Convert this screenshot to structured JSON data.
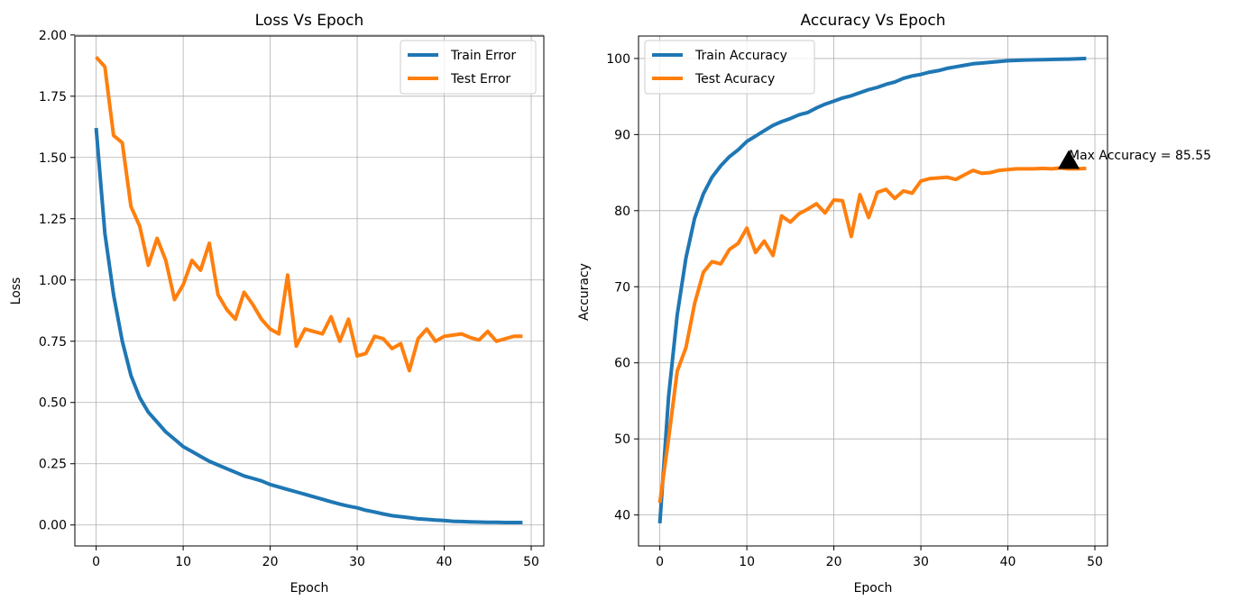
{
  "chart_data": [
    {
      "type": "line",
      "title": "Loss Vs Epoch",
      "xlabel": "Epoch",
      "ylabel": "Loss",
      "xlim": [
        -2.45,
        51.45
      ],
      "ylim": [
        -0.0856,
        1.9956
      ],
      "xticks": [
        0,
        10,
        20,
        30,
        40,
        50
      ],
      "yticks": [
        0.0,
        0.25,
        0.5,
        0.75,
        1.0,
        1.25,
        1.5,
        1.75,
        2.0
      ],
      "xtick_labels": [
        "0",
        "10",
        "20",
        "30",
        "40",
        "50"
      ],
      "ytick_labels": [
        "0.00",
        "0.25",
        "0.50",
        "0.75",
        "1.00",
        "1.25",
        "1.50",
        "1.75",
        "2.00"
      ],
      "grid": true,
      "legend": "upper right",
      "x": [
        0,
        1,
        2,
        3,
        4,
        5,
        6,
        7,
        8,
        9,
        10,
        11,
        12,
        13,
        14,
        15,
        16,
        17,
        18,
        19,
        20,
        21,
        22,
        23,
        24,
        25,
        26,
        27,
        28,
        29,
        30,
        31,
        32,
        33,
        34,
        35,
        36,
        37,
        38,
        39,
        40,
        41,
        42,
        43,
        44,
        45,
        46,
        47,
        48,
        49
      ],
      "series": [
        {
          "name": "Train Error",
          "color": "#1f77b4",
          "values": [
            1.62,
            1.19,
            0.94,
            0.75,
            0.61,
            0.52,
            0.46,
            0.42,
            0.38,
            0.35,
            0.32,
            0.3,
            0.28,
            0.26,
            0.245,
            0.23,
            0.215,
            0.2,
            0.19,
            0.18,
            0.165,
            0.155,
            0.145,
            0.135,
            0.125,
            0.115,
            0.105,
            0.095,
            0.085,
            0.077,
            0.07,
            0.06,
            0.053,
            0.045,
            0.038,
            0.034,
            0.03,
            0.025,
            0.023,
            0.02,
            0.018,
            0.015,
            0.014,
            0.013,
            0.012,
            0.011,
            0.011,
            0.01,
            0.01,
            0.01
          ]
        },
        {
          "name": "Test Error",
          "color": "#ff7f0e",
          "values": [
            1.91,
            1.87,
            1.59,
            1.56,
            1.3,
            1.22,
            1.06,
            1.17,
            1.08,
            0.92,
            0.98,
            1.08,
            1.04,
            1.15,
            0.94,
            0.88,
            0.84,
            0.95,
            0.9,
            0.84,
            0.8,
            0.78,
            1.02,
            0.73,
            0.8,
            0.79,
            0.78,
            0.85,
            0.75,
            0.84,
            0.69,
            0.7,
            0.77,
            0.76,
            0.72,
            0.74,
            0.63,
            0.76,
            0.8,
            0.75,
            0.77,
            0.775,
            0.78,
            0.765,
            0.755,
            0.79,
            0.75,
            0.76,
            0.77,
            0.77
          ]
        }
      ]
    },
    {
      "type": "line",
      "title": "Accuracy Vs Epoch",
      "xlabel": "Epoch",
      "ylabel": "Accuracy",
      "xlim": [
        -2.45,
        51.45
      ],
      "ylim": [
        35.93,
        102.95
      ],
      "xticks": [
        0,
        10,
        20,
        30,
        40,
        50
      ],
      "yticks": [
        40,
        50,
        60,
        70,
        80,
        90,
        100
      ],
      "xtick_labels": [
        "0",
        "10",
        "20",
        "30",
        "40",
        "50"
      ],
      "ytick_labels": [
        "40",
        "50",
        "60",
        "70",
        "80",
        "90",
        "100"
      ],
      "grid": true,
      "legend": "upper left",
      "x": [
        0,
        1,
        2,
        3,
        4,
        5,
        6,
        7,
        8,
        9,
        10,
        11,
        12,
        13,
        14,
        15,
        16,
        17,
        18,
        19,
        20,
        21,
        22,
        23,
        24,
        25,
        26,
        27,
        28,
        29,
        30,
        31,
        32,
        33,
        34,
        35,
        36,
        37,
        38,
        39,
        40,
        41,
        42,
        43,
        44,
        45,
        46,
        47,
        48,
        49
      ],
      "series": [
        {
          "name": "Train Accuracy",
          "color": "#1f77b4",
          "values": [
            38.9,
            55.5,
            66.3,
            73.8,
            79.0,
            82.2,
            84.4,
            85.9,
            87.1,
            88.0,
            89.1,
            89.8,
            90.5,
            91.2,
            91.7,
            92.1,
            92.6,
            92.9,
            93.5,
            94.0,
            94.4,
            94.8,
            95.1,
            95.5,
            95.9,
            96.2,
            96.6,
            96.9,
            97.4,
            97.7,
            97.9,
            98.2,
            98.4,
            98.7,
            98.9,
            99.1,
            99.3,
            99.4,
            99.5,
            99.6,
            99.7,
            99.75,
            99.8,
            99.82,
            99.85,
            99.87,
            99.9,
            99.92,
            99.95,
            100.0
          ]
        },
        {
          "name": "Test Acuracy",
          "color": "#ff7f0e",
          "values": [
            41.6,
            50.0,
            58.9,
            62.0,
            67.8,
            71.9,
            73.3,
            73.0,
            74.9,
            75.7,
            77.7,
            74.5,
            76.0,
            74.1,
            79.3,
            78.5,
            79.6,
            80.2,
            80.9,
            79.7,
            81.4,
            81.3,
            76.6,
            82.1,
            79.1,
            82.4,
            82.8,
            81.6,
            82.6,
            82.3,
            83.9,
            84.2,
            84.3,
            84.4,
            84.1,
            84.7,
            85.3,
            84.9,
            85.0,
            85.3,
            85.4,
            85.5,
            85.5,
            85.5,
            85.55,
            85.5,
            85.6,
            85.5,
            85.5,
            85.55
          ]
        }
      ],
      "annotation": {
        "text": "Max Accuracy = 85.55",
        "x": 47,
        "y": 86.55,
        "marker": "triangle"
      }
    }
  ]
}
